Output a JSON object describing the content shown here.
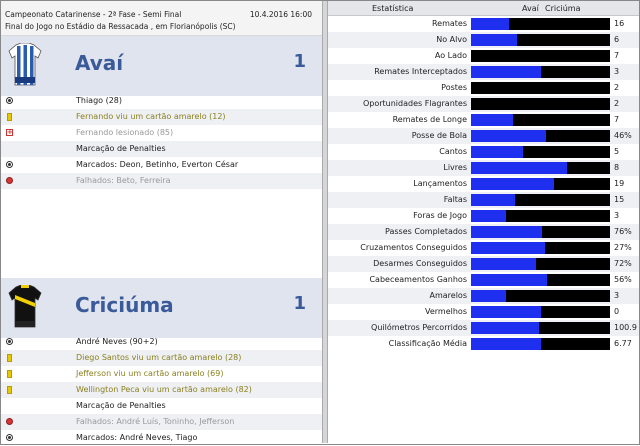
{
  "match": {
    "competition": "Campeonato Catarinense - 2ª Fase - Semi Final",
    "datetime": "10.4.2016 16:00",
    "venue": "Final do Jogo no Estádio da Ressacada , em Florianópolis (SC)"
  },
  "home": {
    "name": "Avaí",
    "score": "1",
    "events": [
      {
        "icon": "ball-icon",
        "text": "Thiago (28)",
        "style": ""
      },
      {
        "icon": "yellow-card-icon",
        "text": "Fernando viu um cartão amarelo (12)",
        "style": "yel"
      },
      {
        "icon": "injury-icon",
        "text": "Fernando lesionado (85)",
        "style": "gry"
      },
      {
        "icon": "",
        "text": "Marcação de Penalties",
        "style": ""
      },
      {
        "icon": "ball-icon",
        "text": "Marcados: Deon, Betinho, Everton César",
        "style": ""
      },
      {
        "icon": "missed-ball-icon",
        "text": "Falhados: Beto, Ferreira",
        "style": "gry"
      }
    ]
  },
  "away": {
    "name": "Criciúma",
    "score": "1",
    "events": [
      {
        "icon": "ball-icon",
        "text": "André Neves (90+2)",
        "style": ""
      },
      {
        "icon": "yellow-card-icon",
        "text": "Diego Santos viu um cartão amarelo (28)",
        "style": "yel"
      },
      {
        "icon": "yellow-card-icon",
        "text": "Jefferson viu um cartão amarelo (69)",
        "style": "yel"
      },
      {
        "icon": "yellow-card-icon",
        "text": "Wellington Peca viu um cartão amarelo (82)",
        "style": "yel"
      },
      {
        "icon": "",
        "text": "Marcação de Penalties",
        "style": ""
      },
      {
        "icon": "missed-ball-icon",
        "text": "Falhados: André Luís, Toninho, Jefferson",
        "style": "gry"
      },
      {
        "icon": "ball-icon",
        "text": "Marcados: André Neves, Tiago",
        "style": ""
      }
    ]
  },
  "stats": {
    "header": {
      "label": "Estatística",
      "home": "Avaí",
      "away": "Criciúma"
    },
    "colors": {
      "home_bar": "#1e2ff0",
      "away_bar": "#000000"
    },
    "rows": [
      {
        "label": "Remates",
        "home": "6",
        "away": "16",
        "home_share": 0.27
      },
      {
        "label": "No Alvo",
        "home": "3",
        "away": "6",
        "home_share": 0.33
      },
      {
        "label": "Ao Lado",
        "home": "0",
        "away": "7",
        "home_share": 0.0
      },
      {
        "label": "Remates Interceptados",
        "home": "3",
        "away": "3",
        "home_share": 0.5
      },
      {
        "label": "Postes",
        "home": "0",
        "away": "2",
        "home_share": 0.0
      },
      {
        "label": "Oportunidades Flagrantes",
        "home": "0",
        "away": "2",
        "home_share": 0.0
      },
      {
        "label": "Remates de Longe",
        "home": "3",
        "away": "7",
        "home_share": 0.3
      },
      {
        "label": "Posse de Bola",
        "home": "54%",
        "away": "46%",
        "home_share": 0.54
      },
      {
        "label": "Cantos",
        "home": "3",
        "away": "5",
        "home_share": 0.375
      },
      {
        "label": "Livres",
        "home": "18",
        "away": "8",
        "home_share": 0.69
      },
      {
        "label": "Lançamentos",
        "home": "28",
        "away": "19",
        "home_share": 0.6
      },
      {
        "label": "Faltas",
        "home": "7",
        "away": "15",
        "home_share": 0.32
      },
      {
        "label": "Foras de Jogo",
        "home": "1",
        "away": "3",
        "home_share": 0.25
      },
      {
        "label": "Passes Completados",
        "home": "78%",
        "away": "76%",
        "home_share": 0.51
      },
      {
        "label": "Cruzamentos Conseguidos",
        "home": "30%",
        "away": "27%",
        "home_share": 0.53
      },
      {
        "label": "Desarmes Conseguidos",
        "home": "64%",
        "away": "72%",
        "home_share": 0.47
      },
      {
        "label": "Cabeceamentos Ganhos",
        "home": "69%",
        "away": "56%",
        "home_share": 0.55
      },
      {
        "label": "Amarelos",
        "home": "1",
        "away": "3",
        "home_share": 0.25
      },
      {
        "label": "Vermelhos",
        "home": "0",
        "away": "0",
        "home_share": 0.5
      },
      {
        "label": "Quilómetros Percorridos",
        "home": "96.7",
        "away": "100.9",
        "home_share": 0.49
      },
      {
        "label": "Classificação Média",
        "home": "6.79",
        "away": "6.77",
        "home_share": 0.5
      }
    ]
  }
}
